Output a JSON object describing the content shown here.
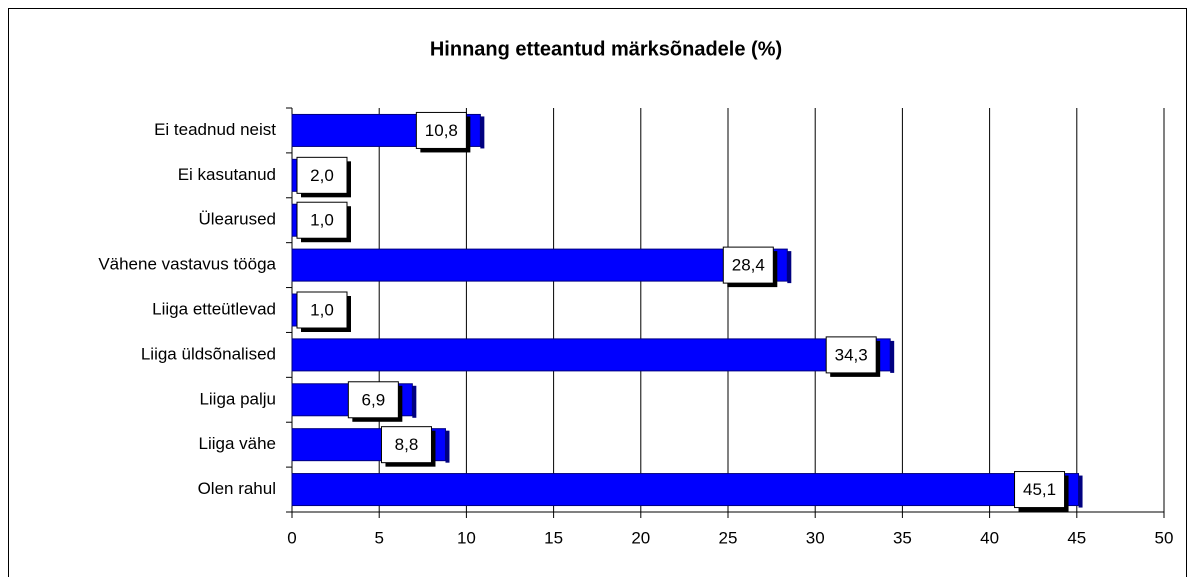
{
  "chart_data": {
    "type": "bar",
    "orientation": "horizontal",
    "title": "Hinnang etteantud märksõnadele (%)",
    "categories": [
      "Ei teadnud neist",
      "Ei kasutanud",
      "Ülearused",
      "Vähene vastavus tööga",
      "Liiga etteütlevad",
      "Liiga üldsõnalised",
      "Liiga palju",
      "Liiga vähe",
      "Olen rahul"
    ],
    "values": [
      10.8,
      2.0,
      1.0,
      28.4,
      1.0,
      34.3,
      6.9,
      8.8,
      45.1
    ],
    "value_labels": [
      "10,8",
      "2,0",
      "1,0",
      "28,4",
      "1,0",
      "34,3",
      "6,9",
      "8,8",
      "45,1"
    ],
    "color": "#0000ff",
    "xlim": [
      0,
      50
    ],
    "xticks": [
      0,
      5,
      10,
      15,
      20,
      25,
      30,
      35,
      40,
      45,
      50
    ],
    "grid": true
  }
}
